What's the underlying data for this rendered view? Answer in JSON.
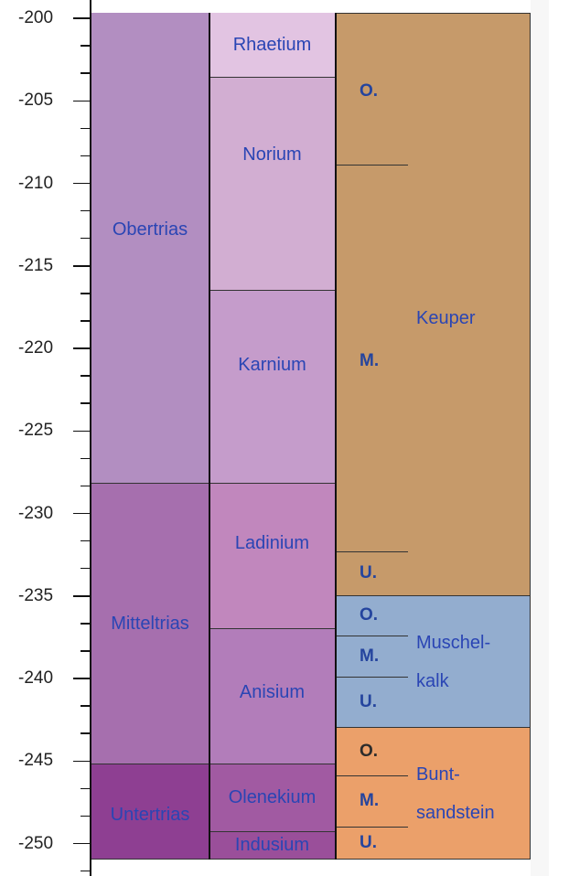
{
  "axis": {
    "ticks": [
      "-200",
      "-205",
      "-210",
      "-215",
      "-220",
      "-225",
      "-230",
      "-235",
      "-240",
      "-245",
      "-250"
    ]
  },
  "epochs": [
    {
      "label": "Obertrias",
      "top_ma": -200,
      "bottom_ma": -228.2,
      "color": "#b28ec1"
    },
    {
      "label": "Mitteltrias",
      "top_ma": -228.2,
      "bottom_ma": -245.2,
      "color": "#a66fae"
    },
    {
      "label": "Untertrias",
      "top_ma": -245.2,
      "bottom_ma": -251,
      "color": "#8e3f92"
    }
  ],
  "stages": [
    {
      "label": "Rhaetium",
      "top_ma": -200,
      "bottom_ma": -203.6,
      "color": "#e2c4e2"
    },
    {
      "label": "Norium",
      "top_ma": -203.6,
      "bottom_ma": -216.5,
      "color": "#d2aed2"
    },
    {
      "label": "Karnium",
      "top_ma": -216.5,
      "bottom_ma": -228.2,
      "color": "#c59ccb"
    },
    {
      "label": "Ladinium",
      "top_ma": -228.2,
      "bottom_ma": -237.0,
      "color": "#c187bd"
    },
    {
      "label": "Anisium",
      "top_ma": -237.0,
      "bottom_ma": -245.2,
      "color": "#b27dba"
    },
    {
      "label": "Olenekium",
      "top_ma": -245.2,
      "bottom_ma": -249.3,
      "color": "#a15aa2"
    },
    {
      "label": "Indusium",
      "top_ma": -249.3,
      "bottom_ma": -251,
      "color": "#9a4f9a"
    }
  ],
  "groups": [
    {
      "name_lines": [
        "Keuper"
      ],
      "top_ma": -200,
      "bottom_ma": -235.0,
      "color": "#c69a6a",
      "subdivisions": [
        {
          "label": "O.",
          "top_ma": -200,
          "bottom_ma": -208.9
        },
        {
          "label": "M.",
          "top_ma": -208.9,
          "bottom_ma": -232.3
        },
        {
          "label": "U.",
          "top_ma": -232.3,
          "bottom_ma": -235.0
        }
      ]
    },
    {
      "name_lines": [
        "Muschel-",
        "kalk"
      ],
      "top_ma": -235.0,
      "bottom_ma": -243.0,
      "color": "#93adcf",
      "subdivisions": [
        {
          "label": "O.",
          "top_ma": -235.0,
          "bottom_ma": -237.4
        },
        {
          "label": "M.",
          "top_ma": -237.4,
          "bottom_ma": -239.9
        },
        {
          "label": "U.",
          "top_ma": -239.9,
          "bottom_ma": -243.0
        }
      ]
    },
    {
      "name_lines": [
        "Bunt-",
        "sandstein"
      ],
      "top_ma": -243.0,
      "bottom_ma": -251,
      "color": "#eba06a",
      "subdivisions": [
        {
          "label": "O.",
          "top_ma": -243.0,
          "bottom_ma": -245.9
        },
        {
          "label": "M.",
          "top_ma": -245.9,
          "bottom_ma": -249.0
        },
        {
          "label": "U.",
          "top_ma": -249.0,
          "bottom_ma": -251
        }
      ]
    }
  ]
}
